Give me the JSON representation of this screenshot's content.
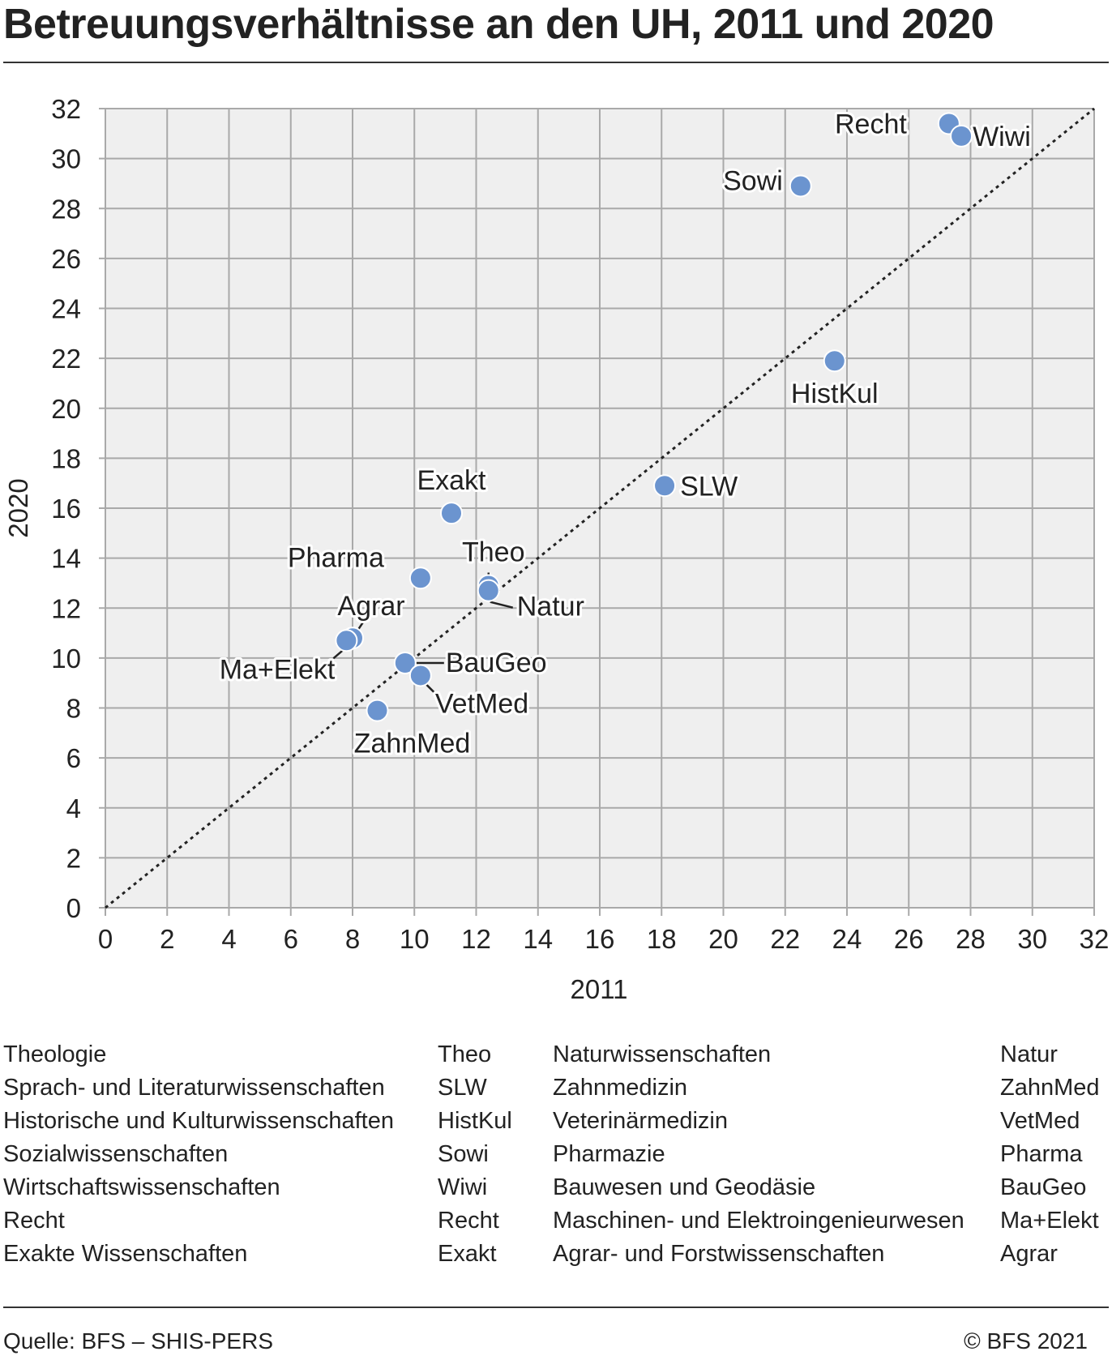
{
  "title": "Betreuungsverhältnisse an den UH, 2011 und 2020",
  "chart_data": {
    "type": "scatter",
    "xlabel": "2011",
    "ylabel": "2020",
    "xlim": [
      0,
      32
    ],
    "ylim": [
      0,
      32
    ],
    "xticks": [
      "0",
      "2",
      "4",
      "6",
      "8",
      "10",
      "12",
      "14",
      "16",
      "18",
      "20",
      "22",
      "24",
      "26",
      "28",
      "30",
      "32"
    ],
    "yticks": [
      "0",
      "2",
      "4",
      "6",
      "8",
      "10",
      "12",
      "14",
      "16",
      "18",
      "20",
      "22",
      "24",
      "26",
      "28",
      "30",
      "32"
    ],
    "grid": true,
    "reference_line": "diagonal",
    "point_color": "#6b94cf",
    "points": [
      {
        "label": "Recht",
        "x": 27.3,
        "y": 31.4
      },
      {
        "label": "Wiwi",
        "x": 27.7,
        "y": 30.9
      },
      {
        "label": "Sowi",
        "x": 22.5,
        "y": 28.9
      },
      {
        "label": "HistKul",
        "x": 23.6,
        "y": 21.9
      },
      {
        "label": "SLW",
        "x": 18.1,
        "y": 16.9
      },
      {
        "label": "Exakt",
        "x": 11.2,
        "y": 15.8
      },
      {
        "label": "Pharma",
        "x": 10.2,
        "y": 13.2
      },
      {
        "label": "Theo",
        "x": 12.4,
        "y": 12.9
      },
      {
        "label": "Natur",
        "x": 12.4,
        "y": 12.7
      },
      {
        "label": "Agrar",
        "x": 8.0,
        "y": 10.8
      },
      {
        "label": "Ma+Elekt",
        "x": 7.8,
        "y": 10.7
      },
      {
        "label": "BauGeo",
        "x": 9.7,
        "y": 9.8
      },
      {
        "label": "VetMed",
        "x": 10.2,
        "y": 9.3
      },
      {
        "label": "ZahnMed",
        "x": 8.8,
        "y": 7.9
      }
    ]
  },
  "legend": {
    "left": [
      {
        "name": "Theologie",
        "abbr": "Theo"
      },
      {
        "name": "Sprach- und Literaturwissenschaften",
        "abbr": "SLW"
      },
      {
        "name": "Historische und Kulturwissenschaften",
        "abbr": "HistKul"
      },
      {
        "name": "Sozialwissenschaften",
        "abbr": "Sowi"
      },
      {
        "name": "Wirtschaftswissenschaften",
        "abbr": "Wiwi"
      },
      {
        "name": "Recht",
        "abbr": "Recht"
      },
      {
        "name": "Exakte Wissenschaften",
        "abbr": "Exakt"
      }
    ],
    "right": [
      {
        "name": "Naturwissenschaften",
        "abbr": "Natur"
      },
      {
        "name": "Zahnmedizin",
        "abbr": "ZahnMed"
      },
      {
        "name": "Veterinärmedizin",
        "abbr": "VetMed"
      },
      {
        "name": "Pharmazie",
        "abbr": "Pharma"
      },
      {
        "name": "Bauwesen und Geodäsie",
        "abbr": "BauGeo"
      },
      {
        "name": "Maschinen- und Elektroingenieurwesen",
        "abbr": "Ma+Elekt"
      },
      {
        "name": "Agrar- und Forstwissenschaften",
        "abbr": "Agrar"
      }
    ]
  },
  "footer": {
    "source": "Quelle: BFS – SHIS-PERS",
    "copyright": "© BFS 2021"
  }
}
